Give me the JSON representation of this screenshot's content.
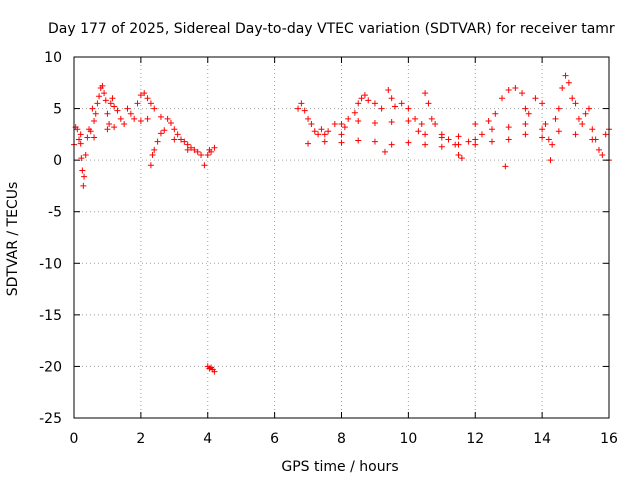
{
  "chart_data": {
    "type": "scatter",
    "title": "Day 177 of 2025, Sidereal Day-to-day VTEC variation (SDTVAR) for receiver tamr",
    "xlabel": "GPS time / hours",
    "ylabel": "SDTVAR / TECUs",
    "xlim": [
      0,
      16
    ],
    "ylim": [
      -25,
      10
    ],
    "xticks": [
      "0",
      "2",
      "4",
      "6",
      "8",
      "10",
      "12",
      "14",
      "16"
    ],
    "yticks": [
      "10",
      "5",
      "0",
      "-5",
      "-10",
      "-15",
      "-20",
      "-25"
    ],
    "grid": true,
    "marker": "+",
    "color": "#ff0000",
    "series": [
      {
        "name": "SDTVAR",
        "points": [
          [
            0.0,
            1.5
          ],
          [
            0.05,
            3.2
          ],
          [
            0.1,
            3.0
          ],
          [
            0.15,
            2.0
          ],
          [
            0.2,
            1.6
          ],
          [
            0.22,
            0.2
          ],
          [
            0.25,
            -1.0
          ],
          [
            0.28,
            -2.5
          ],
          [
            0.3,
            -1.6
          ],
          [
            0.35,
            0.5
          ],
          [
            0.4,
            2.2
          ],
          [
            0.45,
            3.0
          ],
          [
            0.5,
            2.8
          ],
          [
            0.55,
            5.0
          ],
          [
            0.6,
            3.8
          ],
          [
            0.65,
            4.5
          ],
          [
            0.7,
            5.5
          ],
          [
            0.75,
            6.2
          ],
          [
            0.8,
            7.0
          ],
          [
            0.85,
            7.2
          ],
          [
            0.9,
            6.5
          ],
          [
            0.95,
            5.8
          ],
          [
            1.0,
            4.5
          ],
          [
            1.05,
            3.5
          ],
          [
            1.1,
            5.5
          ],
          [
            1.15,
            6.0
          ],
          [
            1.2,
            5.2
          ],
          [
            1.3,
            4.8
          ],
          [
            1.4,
            4.0
          ],
          [
            1.5,
            3.5
          ],
          [
            1.6,
            5.0
          ],
          [
            1.7,
            4.5
          ],
          [
            1.8,
            4.0
          ],
          [
            1.9,
            5.5
          ],
          [
            2.0,
            6.3
          ],
          [
            2.1,
            6.5
          ],
          [
            2.2,
            6.0
          ],
          [
            2.3,
            5.5
          ],
          [
            2.4,
            5.0
          ],
          [
            2.3,
            -0.5
          ],
          [
            2.35,
            0.5
          ],
          [
            2.4,
            1.0
          ],
          [
            2.5,
            1.8
          ],
          [
            2.6,
            2.6
          ],
          [
            2.7,
            2.9
          ],
          [
            2.8,
            4.0
          ],
          [
            2.9,
            3.6
          ],
          [
            3.0,
            3.0
          ],
          [
            3.1,
            2.5
          ],
          [
            3.2,
            2.0
          ],
          [
            3.3,
            1.8
          ],
          [
            3.4,
            1.5
          ],
          [
            3.5,
            1.2
          ],
          [
            3.6,
            1.0
          ],
          [
            3.7,
            0.8
          ],
          [
            3.8,
            0.5
          ],
          [
            3.9,
            -0.5
          ],
          [
            4.0,
            0.5
          ],
          [
            4.05,
            1.0
          ],
          [
            4.1,
            0.8
          ],
          [
            4.2,
            1.2
          ],
          [
            4.0,
            -20.0
          ],
          [
            4.05,
            -20.2
          ],
          [
            4.1,
            -20.1
          ],
          [
            4.15,
            -20.3
          ],
          [
            4.2,
            -20.5
          ],
          [
            0.2,
            2.5
          ],
          [
            0.6,
            2.2
          ],
          [
            1.0,
            3.0
          ],
          [
            1.2,
            3.2
          ],
          [
            2.0,
            3.8
          ],
          [
            2.2,
            4.0
          ],
          [
            2.6,
            4.2
          ],
          [
            3.0,
            2.0
          ],
          [
            3.4,
            1.0
          ],
          [
            6.7,
            5.0
          ],
          [
            6.8,
            5.5
          ],
          [
            6.9,
            4.8
          ],
          [
            7.0,
            4.0
          ],
          [
            7.1,
            3.5
          ],
          [
            7.2,
            2.8
          ],
          [
            7.3,
            2.5
          ],
          [
            7.4,
            3.0
          ],
          [
            7.5,
            2.5
          ],
          [
            7.6,
            2.8
          ],
          [
            7.8,
            3.5
          ],
          [
            8.0,
            2.5
          ],
          [
            8.1,
            3.2
          ],
          [
            8.2,
            4.0
          ],
          [
            8.4,
            4.6
          ],
          [
            8.5,
            5.5
          ],
          [
            8.6,
            6.0
          ],
          [
            8.7,
            6.3
          ],
          [
            8.8,
            5.8
          ],
          [
            9.0,
            5.5
          ],
          [
            9.2,
            5.0
          ],
          [
            9.4,
            6.8
          ],
          [
            9.5,
            6.0
          ],
          [
            9.6,
            5.2
          ],
          [
            9.8,
            5.5
          ],
          [
            10.0,
            5.0
          ],
          [
            10.2,
            4.0
          ],
          [
            10.3,
            2.8
          ],
          [
            10.4,
            3.5
          ],
          [
            10.5,
            6.5
          ],
          [
            10.6,
            5.5
          ],
          [
            10.7,
            4.0
          ],
          [
            10.8,
            3.5
          ],
          [
            11.0,
            2.5
          ],
          [
            11.2,
            2.0
          ],
          [
            11.4,
            1.5
          ],
          [
            11.5,
            0.5
          ],
          [
            11.6,
            0.2
          ],
          [
            11.8,
            1.8
          ],
          [
            12.0,
            3.5
          ],
          [
            12.2,
            2.5
          ],
          [
            12.4,
            3.8
          ],
          [
            12.6,
            4.5
          ],
          [
            12.8,
            6.0
          ],
          [
            12.9,
            -0.6
          ],
          [
            13.0,
            6.8
          ],
          [
            13.2,
            7.0
          ],
          [
            13.4,
            6.5
          ],
          [
            13.5,
            5.0
          ],
          [
            13.6,
            4.5
          ],
          [
            13.8,
            6.0
          ],
          [
            14.0,
            5.5
          ],
          [
            14.1,
            3.5
          ],
          [
            14.2,
            2.0
          ],
          [
            14.3,
            1.5
          ],
          [
            14.25,
            0.0
          ],
          [
            14.4,
            4.0
          ],
          [
            14.5,
            5.0
          ],
          [
            14.6,
            7.0
          ],
          [
            14.7,
            8.2
          ],
          [
            14.8,
            7.5
          ],
          [
            14.9,
            6.0
          ],
          [
            15.0,
            5.5
          ],
          [
            15.1,
            4.0
          ],
          [
            15.2,
            3.5
          ],
          [
            15.3,
            4.5
          ],
          [
            15.4,
            5.0
          ],
          [
            15.5,
            3.0
          ],
          [
            15.6,
            2.0
          ],
          [
            15.7,
            1.0
          ],
          [
            15.8,
            0.5
          ],
          [
            15.9,
            2.5
          ],
          [
            16.0,
            3.0
          ],
          [
            16.0,
            0.0
          ],
          [
            7.0,
            1.6
          ],
          [
            7.5,
            1.8
          ],
          [
            8.0,
            1.7
          ],
          [
            8.5,
            1.9
          ],
          [
            9.0,
            1.8
          ],
          [
            9.3,
            0.8
          ],
          [
            9.5,
            1.5
          ],
          [
            10.0,
            1.7
          ],
          [
            10.5,
            1.5
          ],
          [
            11.0,
            1.3
          ],
          [
            11.5,
            1.5
          ],
          [
            12.0,
            1.5
          ],
          [
            12.5,
            1.8
          ],
          [
            13.0,
            2.0
          ],
          [
            13.5,
            2.5
          ],
          [
            14.0,
            2.2
          ],
          [
            8.0,
            3.5
          ],
          [
            8.5,
            3.8
          ],
          [
            9.0,
            3.6
          ],
          [
            9.5,
            3.7
          ],
          [
            10.0,
            3.8
          ],
          [
            10.5,
            2.5
          ],
          [
            11.0,
            2.2
          ],
          [
            11.5,
            2.3
          ],
          [
            12.0,
            2.0
          ],
          [
            12.5,
            3.0
          ],
          [
            13.0,
            3.2
          ],
          [
            13.5,
            3.5
          ],
          [
            14.0,
            3.0
          ],
          [
            14.5,
            2.8
          ],
          [
            15.0,
            2.5
          ],
          [
            15.5,
            2.0
          ]
        ]
      }
    ]
  }
}
